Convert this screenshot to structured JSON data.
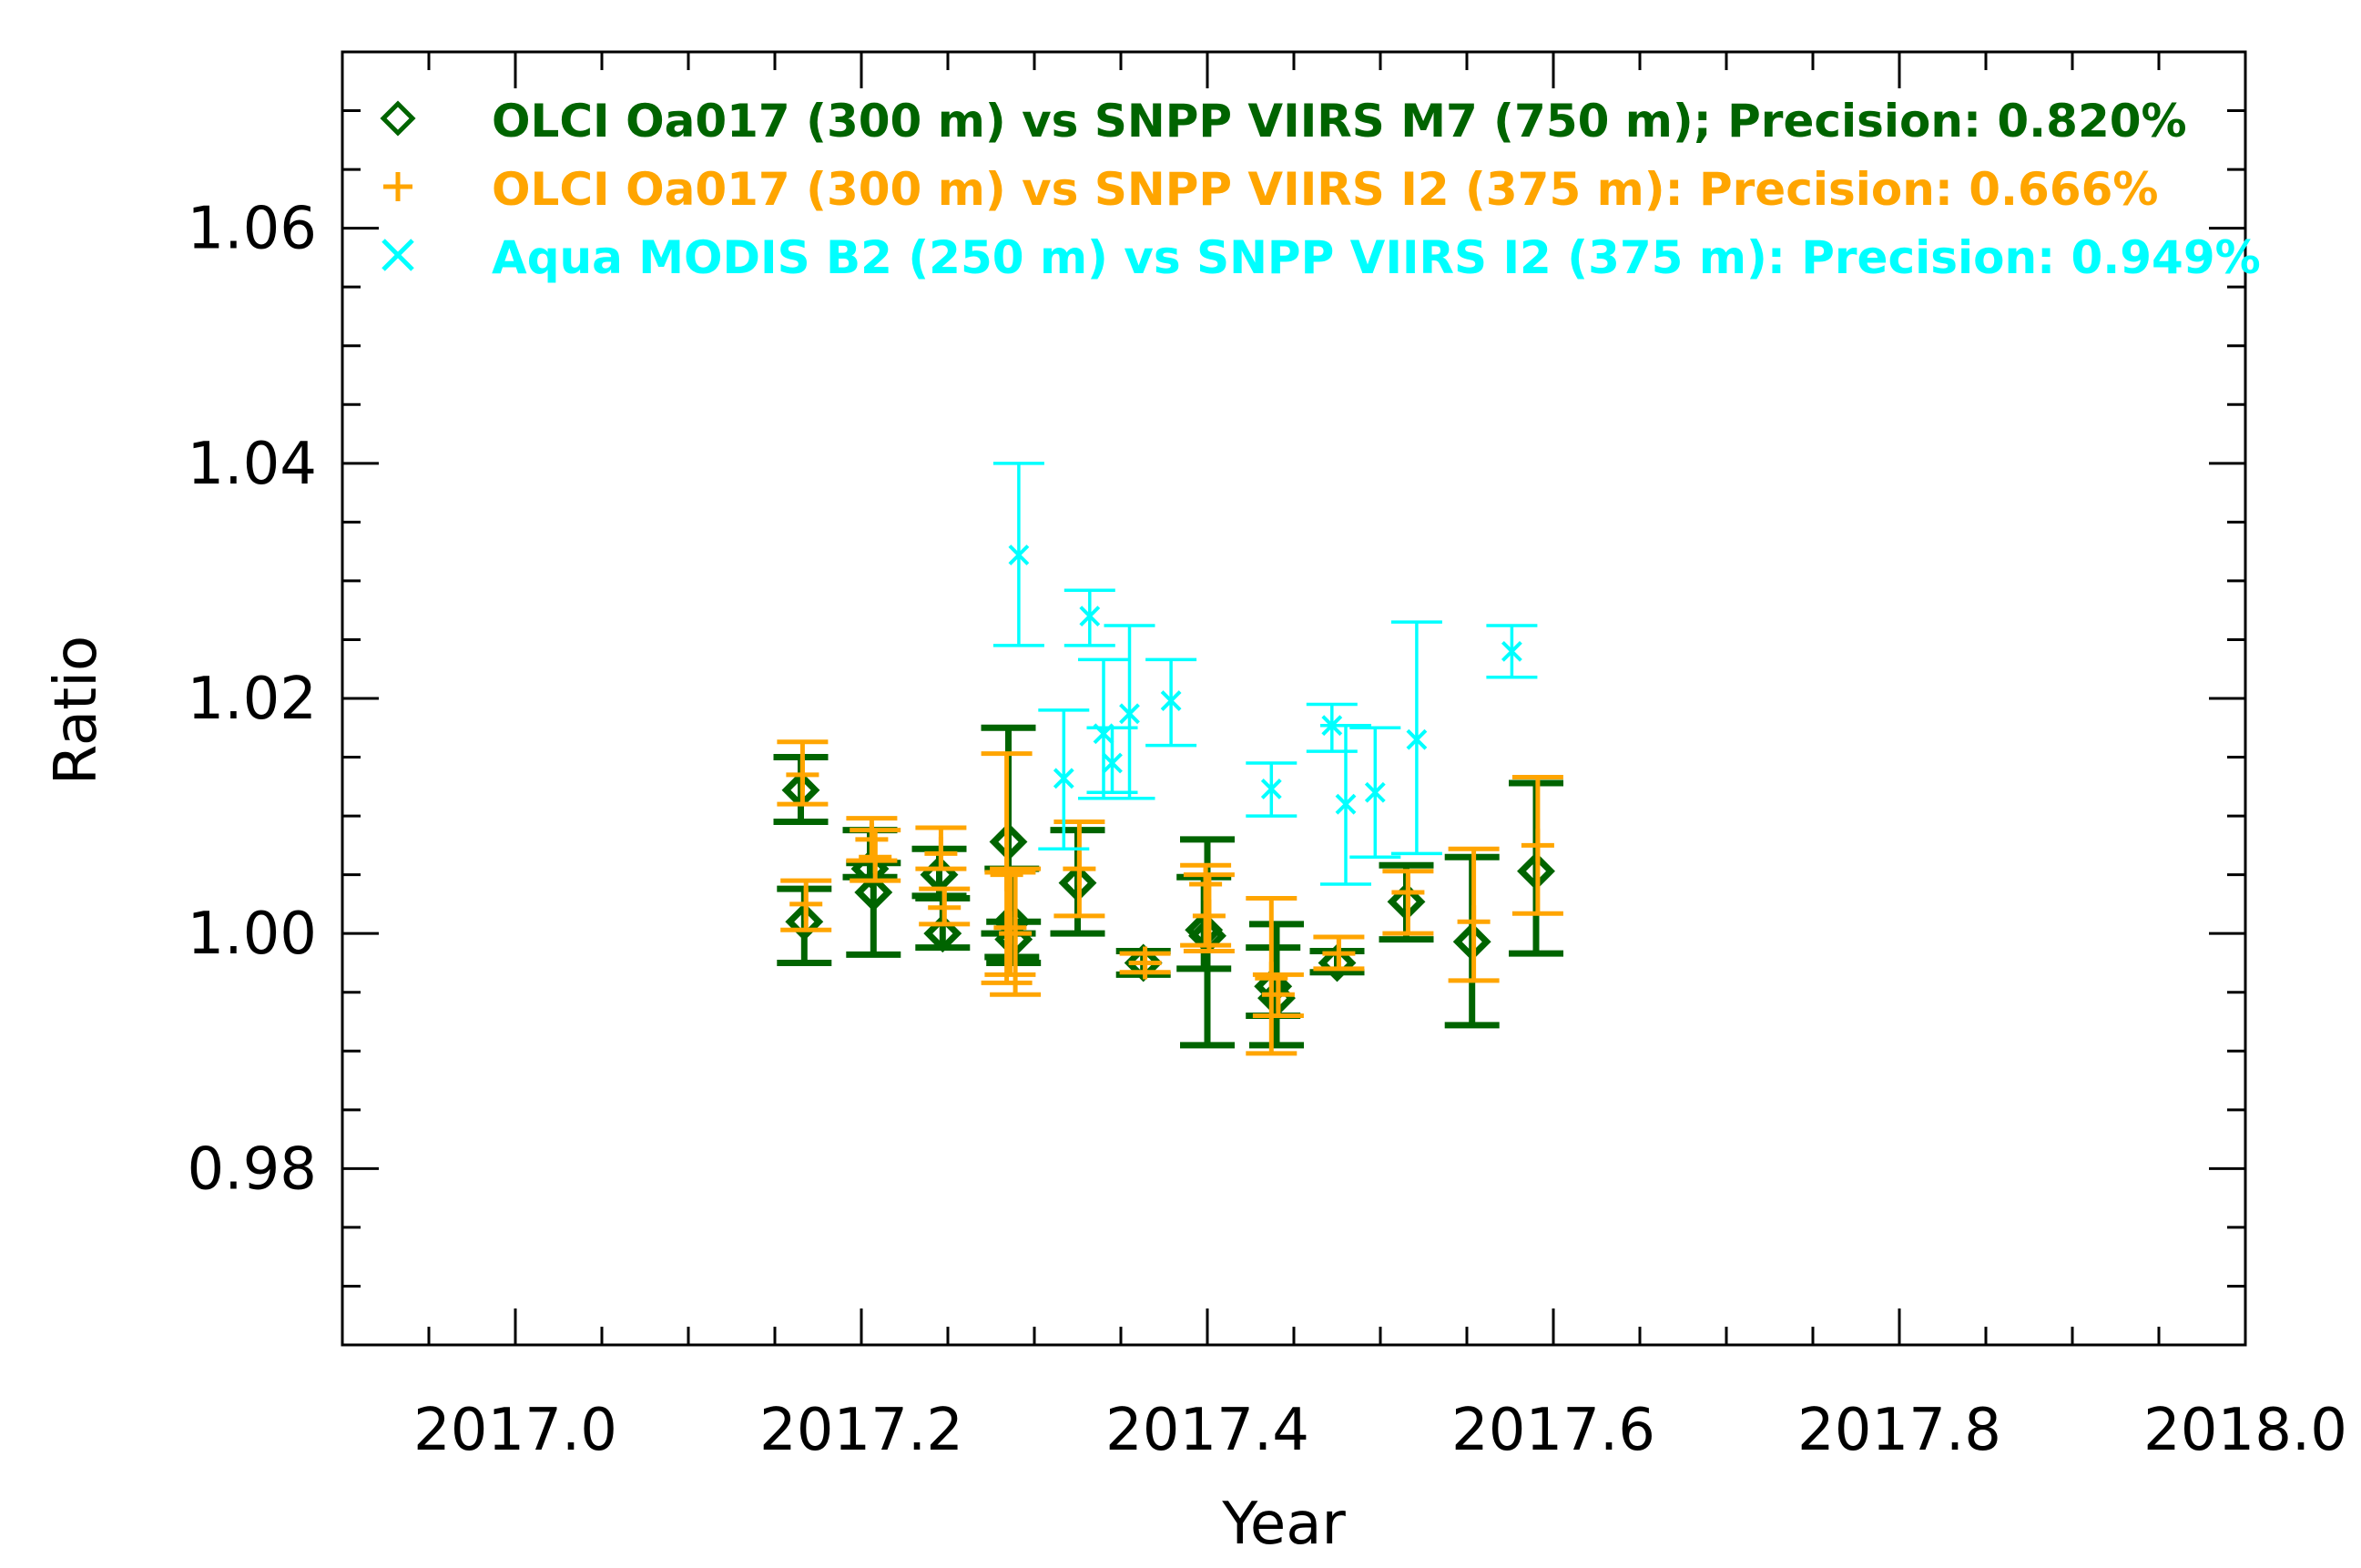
{
  "chart_data": {
    "type": "scatter",
    "title": "",
    "xlabel": "Year",
    "ylabel": "Ratio",
    "xlim": [
      2016.9,
      2018.0
    ],
    "ylim": [
      0.965,
      1.075
    ],
    "x_major_ticks": [
      2017.0,
      2017.2,
      2017.4,
      2017.6,
      2017.8,
      2018.0
    ],
    "x_tick_labels": [
      "2017.0",
      "2017.2",
      "2017.4",
      "2017.6",
      "2017.8",
      "2018.0"
    ],
    "x_minor_step": 0.05,
    "y_major_ticks": [
      0.98,
      1.0,
      1.02,
      1.04,
      1.06
    ],
    "y_tick_labels": [
      "0.98",
      "1.00",
      "1.02",
      "1.04",
      "1.06"
    ],
    "y_minor_step": 0.005,
    "grid": false,
    "legend_position": "top-left",
    "series": [
      {
        "name": "OLCI Oa017 (300 m) vs SNPP VIIRS M7 (750 m); Precision: 0.820%",
        "marker": "diamond",
        "color": "#006400",
        "points": [
          {
            "x": 2017.165,
            "y": 1.0122,
            "lo": 1.0095,
            "hi": 1.015
          },
          {
            "x": 2017.167,
            "y": 1.001,
            "lo": 0.9975,
            "hi": 1.0038
          },
          {
            "x": 2017.205,
            "y": 1.0055,
            "lo": 1.0048,
            "hi": 1.0088
          },
          {
            "x": 2017.207,
            "y": 1.0035,
            "lo": 0.9982,
            "hi": 1.006
          },
          {
            "x": 2017.245,
            "y": 1.005,
            "lo": 1.0032,
            "hi": 1.0072
          },
          {
            "x": 2017.247,
            "y": 1.0,
            "lo": 0.9988,
            "hi": 1.003
          },
          {
            "x": 2017.285,
            "y": 1.0078,
            "lo": 1.0,
            "hi": 1.0175
          },
          {
            "x": 2017.287,
            "y": 1.001,
            "lo": 0.998,
            "hi": 1.0055
          },
          {
            "x": 2017.288,
            "y": 0.9995,
            "lo": 0.9975,
            "hi": 1.001
          },
          {
            "x": 2017.325,
            "y": 1.0043,
            "lo": 1.0,
            "hi": 1.0088
          },
          {
            "x": 2017.363,
            "y": 0.9975,
            "lo": 0.9965,
            "hi": 0.9985
          },
          {
            "x": 2017.398,
            "y": 1.0003,
            "lo": 0.997,
            "hi": 1.0048
          },
          {
            "x": 2017.4,
            "y": 0.9998,
            "lo": 0.9905,
            "hi": 1.008
          },
          {
            "x": 2017.438,
            "y": 0.9955,
            "lo": 0.993,
            "hi": 0.9988
          },
          {
            "x": 2017.44,
            "y": 0.9945,
            "lo": 0.9905,
            "hi": 1.0008
          },
          {
            "x": 2017.475,
            "y": 0.9975,
            "lo": 0.9967,
            "hi": 0.9985
          },
          {
            "x": 2017.515,
            "y": 1.0027,
            "lo": 0.9995,
            "hi": 1.0058
          },
          {
            "x": 2017.553,
            "y": 0.9993,
            "lo": 0.9922,
            "hi": 1.0065
          },
          {
            "x": 2017.59,
            "y": 1.0053,
            "lo": 0.9983,
            "hi": 1.0128
          }
        ]
      },
      {
        "name": "OLCI Oa017 (300 m) vs SNPP VIIRS I2 (375 m): Precision: 0.666%",
        "marker": "plus",
        "color": "#FFA500",
        "points": [
          {
            "x": 2017.166,
            "y": 1.0135,
            "lo": 1.011,
            "hi": 1.0163
          },
          {
            "x": 2017.168,
            "y": 1.0025,
            "lo": 1.0003,
            "hi": 1.0045
          },
          {
            "x": 2017.206,
            "y": 1.008,
            "lo": 1.0062,
            "hi": 1.0098
          },
          {
            "x": 2017.208,
            "y": 1.0065,
            "lo": 1.0045,
            "hi": 1.0088
          },
          {
            "x": 2017.246,
            "y": 1.0068,
            "lo": 1.0055,
            "hi": 1.009
          },
          {
            "x": 2017.248,
            "y": 1.0022,
            "lo": 1.0008,
            "hi": 1.0038
          },
          {
            "x": 2017.284,
            "y": 1.005,
            "lo": 0.9958,
            "hi": 1.0153
          },
          {
            "x": 2017.286,
            "y": 1.0005,
            "lo": 0.9965,
            "hi": 1.0052
          },
          {
            "x": 2017.289,
            "y": 1.0,
            "lo": 0.9948,
            "hi": 1.0055
          },
          {
            "x": 2017.326,
            "y": 1.0055,
            "lo": 1.0015,
            "hi": 1.0095
          },
          {
            "x": 2017.364,
            "y": 0.9975,
            "lo": 0.9967,
            "hi": 0.9983
          },
          {
            "x": 2017.399,
            "y": 1.0042,
            "lo": 0.999,
            "hi": 1.0058
          },
          {
            "x": 2017.401,
            "y": 1.0015,
            "lo": 0.9985,
            "hi": 1.005
          },
          {
            "x": 2017.437,
            "y": 0.9962,
            "lo": 0.9898,
            "hi": 1.003
          },
          {
            "x": 2017.441,
            "y": 0.9948,
            "lo": 0.993,
            "hi": 0.9965
          },
          {
            "x": 2017.476,
            "y": 0.9983,
            "lo": 0.997,
            "hi": 0.9997
          },
          {
            "x": 2017.516,
            "y": 1.0035,
            "lo": 1.0,
            "hi": 1.0053
          },
          {
            "x": 2017.554,
            "y": 1.001,
            "lo": 0.996,
            "hi": 1.0072
          },
          {
            "x": 2017.591,
            "y": 1.0075,
            "lo": 1.0017,
            "hi": 1.0133
          }
        ]
      },
      {
        "name": "Aqua MODIS B2 (250 m) vs SNPP VIIRS I2 (375 m): Precision: 0.949%",
        "marker": "x",
        "color": "#00FFFF",
        "points": [
          {
            "x": 2017.291,
            "y": 1.0322,
            "lo": 1.0245,
            "hi": 1.04
          },
          {
            "x": 2017.317,
            "y": 1.0132,
            "lo": 1.0072,
            "hi": 1.019
          },
          {
            "x": 2017.332,
            "y": 1.027,
            "lo": 1.0245,
            "hi": 1.0292
          },
          {
            "x": 2017.34,
            "y": 1.017,
            "lo": 1.0115,
            "hi": 1.0233
          },
          {
            "x": 2017.345,
            "y": 1.0145,
            "lo": 1.012,
            "hi": 1.0175
          },
          {
            "x": 2017.355,
            "y": 1.0187,
            "lo": 1.0115,
            "hi": 1.0262
          },
          {
            "x": 2017.379,
            "y": 1.0198,
            "lo": 1.016,
            "hi": 1.0233
          },
          {
            "x": 2017.437,
            "y": 1.0123,
            "lo": 1.01,
            "hi": 1.0145
          },
          {
            "x": 2017.472,
            "y": 1.0177,
            "lo": 1.0155,
            "hi": 1.0195
          },
          {
            "x": 2017.48,
            "y": 1.011,
            "lo": 1.0042,
            "hi": 1.0177
          },
          {
            "x": 2017.497,
            "y": 1.012,
            "lo": 1.0065,
            "hi": 1.0175
          },
          {
            "x": 2017.521,
            "y": 1.0165,
            "lo": 1.0068,
            "hi": 1.0265
          },
          {
            "x": 2017.576,
            "y": 1.024,
            "lo": 1.0218,
            "hi": 1.0262
          }
        ]
      }
    ]
  }
}
